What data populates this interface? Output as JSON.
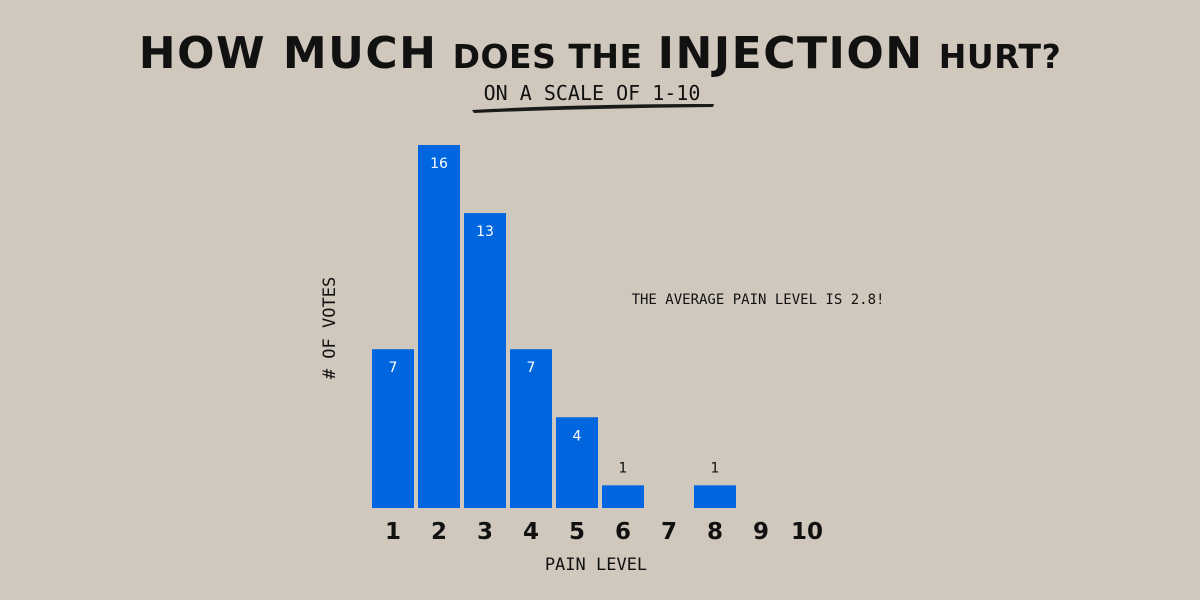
{
  "title": {
    "part1": "HOW MUCH",
    "part2": "DOES THE",
    "part3": "INJECTION",
    "part4": "HURT?"
  },
  "subtitle": "ON A SCALE OF 1-10",
  "annotation": "THE AVERAGE PAIN LEVEL IS 2.8!",
  "colors": {
    "background": "#d0c8bd",
    "bar": "#0066e0",
    "label_inside": "#ffffff",
    "label_outside": "#111111",
    "text": "#111111"
  },
  "chart_data": {
    "type": "bar",
    "title": "HOW MUCH DOES THE INJECTION HURT?",
    "subtitle": "ON A SCALE OF 1-10",
    "xlabel": "PAIN LEVEL",
    "ylabel": "# OF VOTES",
    "categories": [
      "1",
      "2",
      "3",
      "4",
      "5",
      "6",
      "7",
      "8",
      "9",
      "10"
    ],
    "values": [
      7,
      16,
      13,
      7,
      4,
      1,
      0,
      1,
      0,
      0
    ],
    "data_labels": [
      "7",
      "16",
      "13",
      "7",
      "4",
      "1",
      "",
      "1",
      "",
      ""
    ],
    "ylim": [
      0,
      16
    ],
    "grid": false,
    "legend": "none",
    "annotation": "THE AVERAGE PAIN LEVEL IS 2.8!"
  }
}
